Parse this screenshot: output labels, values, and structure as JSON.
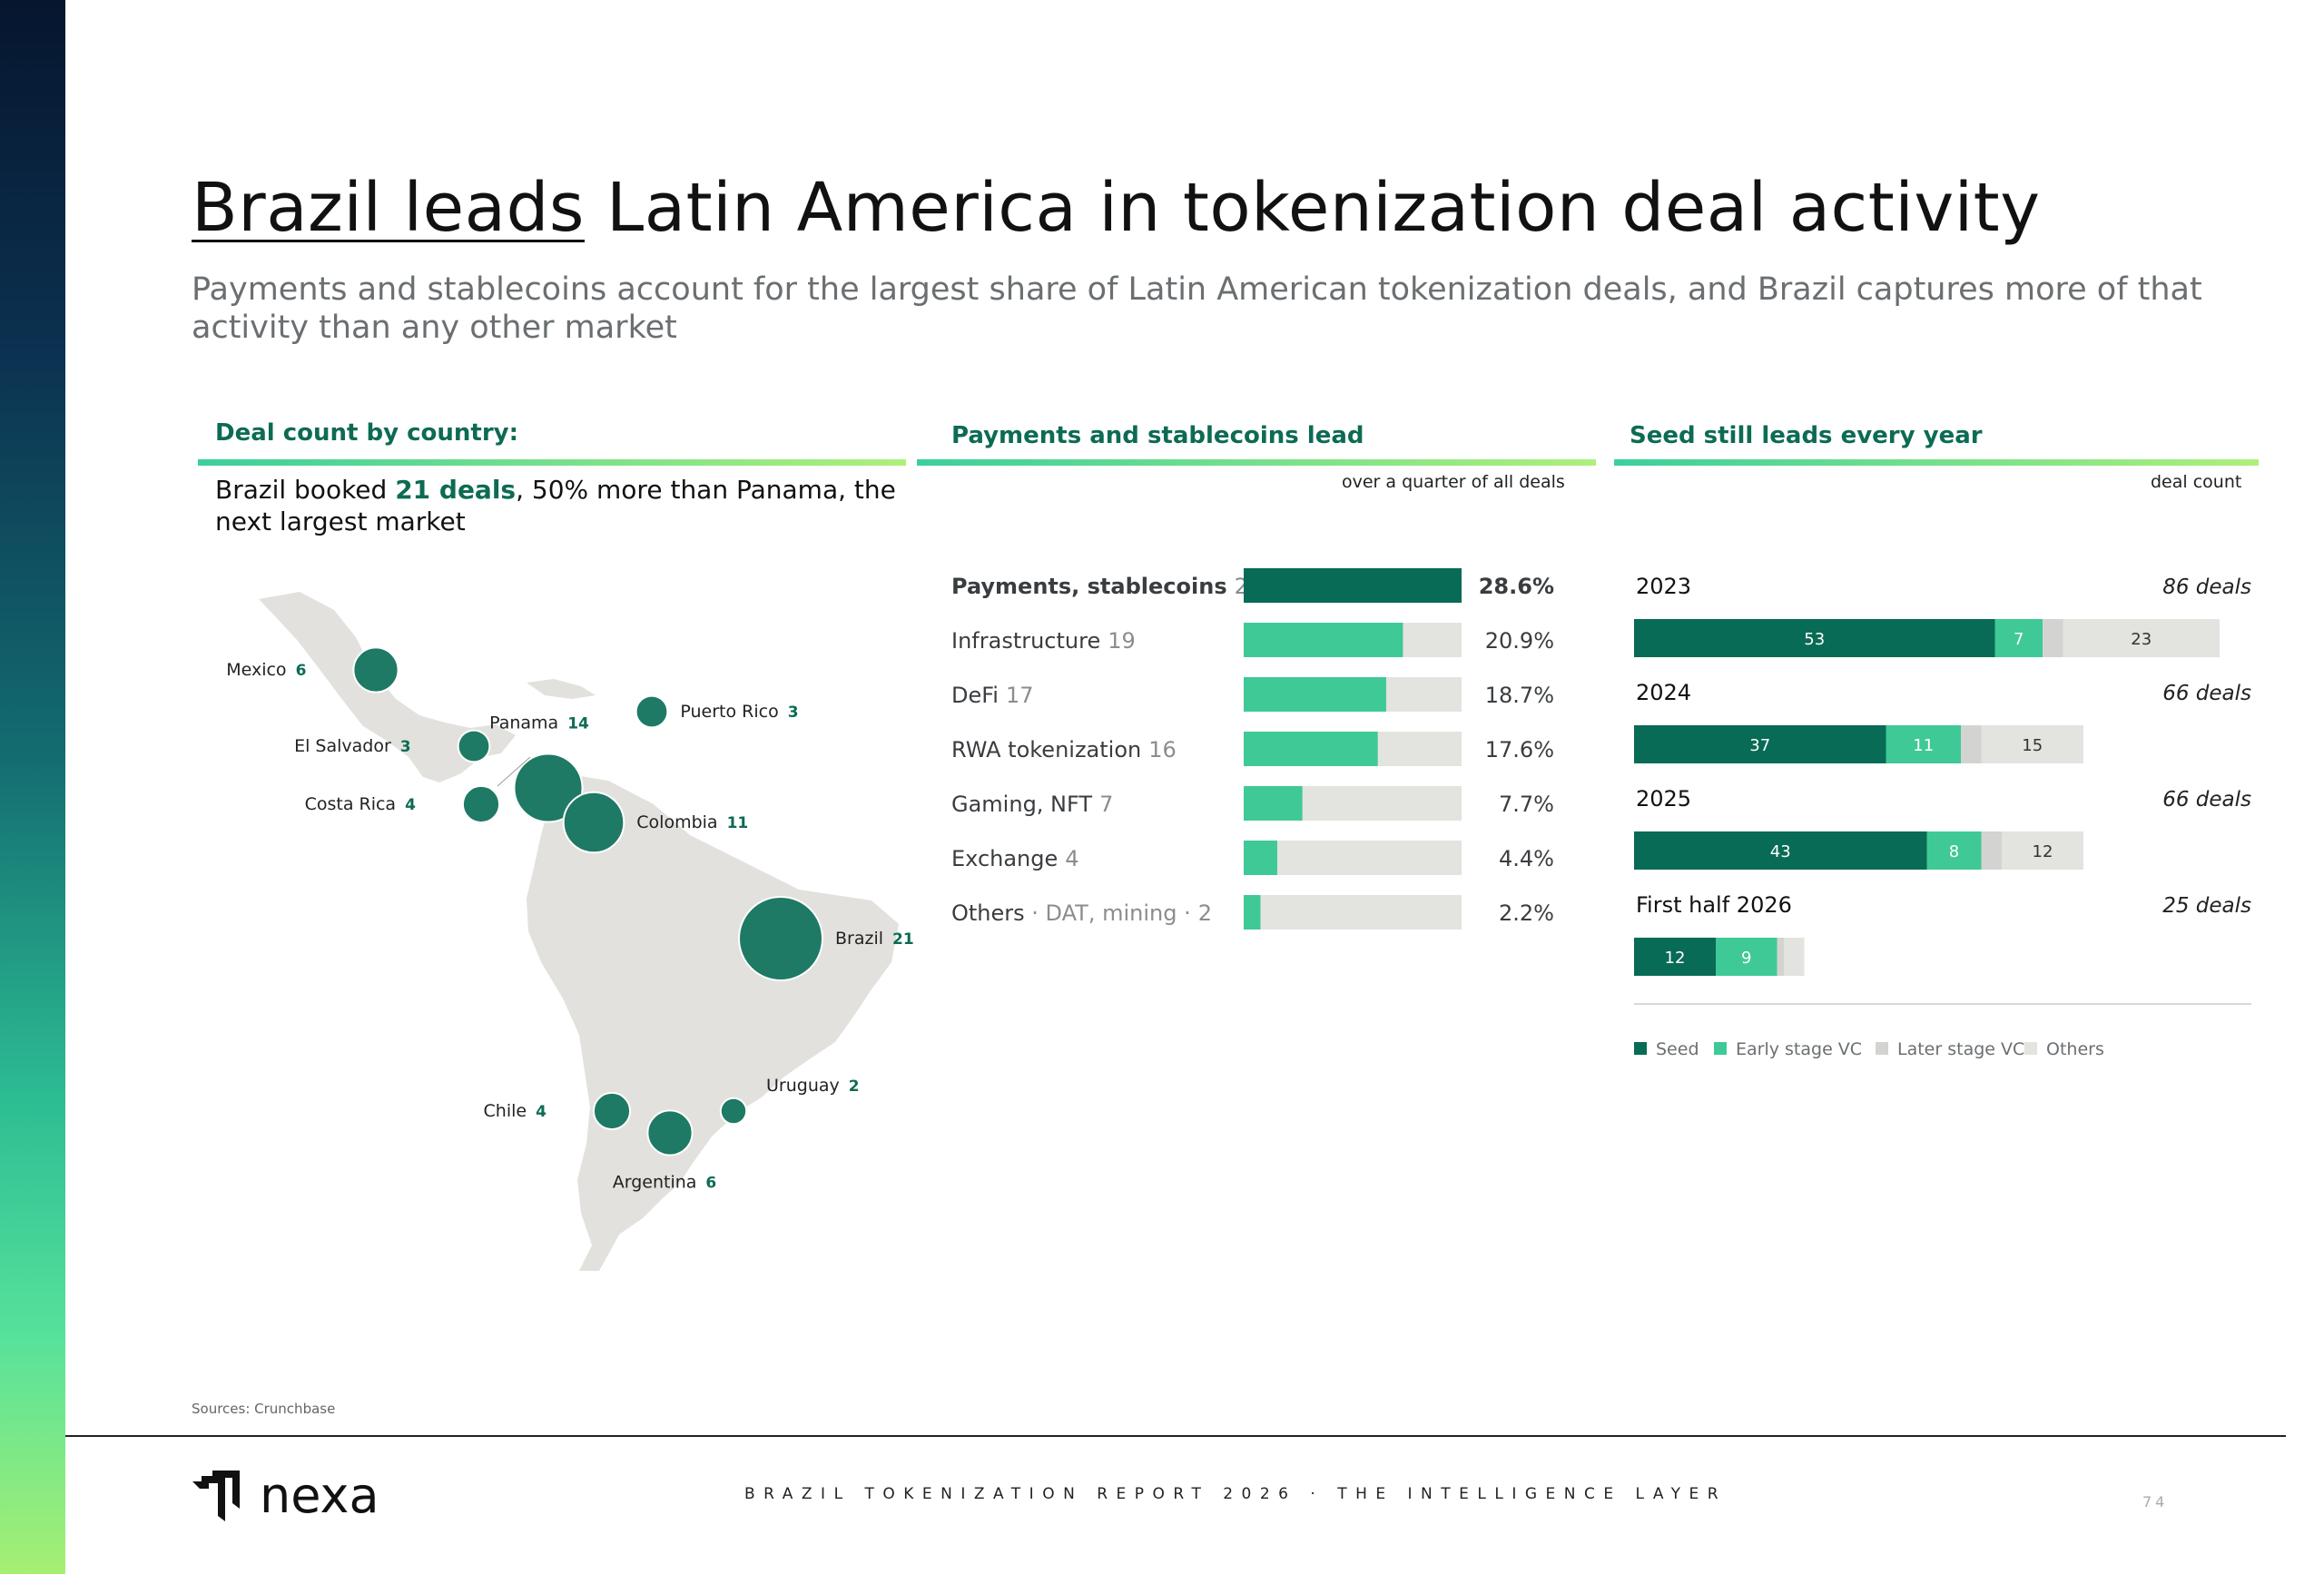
{
  "header": {
    "title_lead": "Brazil leads",
    "title_rest": " Latin America in tokenization deal activity",
    "subtitle": "Payments and stablecoins account for the largest share of Latin American tokenization deals, and Brazil captures more of that activity than any other market"
  },
  "panel_country": {
    "heading": "Deal count by country:",
    "text_pre": "Brazil booked ",
    "text_highlight": "21 deals",
    "text_post": ", 50% more than Panama, the next largest market"
  },
  "panel_sector": {
    "heading": "Payments and stablecoins lead",
    "note": "over a quarter of all deals"
  },
  "panel_stage": {
    "heading": "Seed still leads every year",
    "note": "deal count"
  },
  "colors": {
    "dark_green": "#086b55",
    "mint": "#3fc996",
    "light_gray": "#d3d4d2",
    "pale_gray": "#e3e3df",
    "land": "#e2e1dd"
  },
  "chart_data": [
    {
      "type": "scatter",
      "name": "Deal count by country",
      "points": [
        {
          "country": "Mexico",
          "value": 6
        },
        {
          "country": "El Salvador",
          "value": 3
        },
        {
          "country": "Costa Rica",
          "value": 4
        },
        {
          "country": "Panama",
          "value": 14
        },
        {
          "country": "Puerto Rico",
          "value": 3
        },
        {
          "country": "Colombia",
          "value": 11
        },
        {
          "country": "Brazil",
          "value": 21
        },
        {
          "country": "Uruguay",
          "value": 2
        },
        {
          "country": "Chile",
          "value": 4
        },
        {
          "country": "Argentina",
          "value": 6
        }
      ]
    },
    {
      "type": "bar",
      "name": "Payments and stablecoins lead",
      "categories": [
        "Payments, stablecoins",
        "Infrastructure",
        "DeFi",
        "RWA tokenization",
        "Gaming, NFT",
        "Exchange",
        "Others"
      ],
      "category_suffix": [
        "",
        "",
        "",
        "",
        "",
        "",
        " · DAT, mining ·"
      ],
      "counts": [
        26,
        19,
        17,
        16,
        7,
        4,
        2
      ],
      "values": [
        28.6,
        20.9,
        18.7,
        17.6,
        7.7,
        4.4,
        2.2
      ],
      "value_labels": [
        "28.6%",
        "20.9%",
        "18.7%",
        "17.6%",
        "7.7%",
        "4.4%",
        "2.2%"
      ]
    },
    {
      "type": "bar",
      "name": "Seed still leads every year",
      "stacked": true,
      "categories": [
        "2023",
        "2024",
        "2025",
        "First half 2026"
      ],
      "totals": [
        "86 deals",
        "66 deals",
        "66 deals",
        "25 deals"
      ],
      "series": [
        {
          "name": "Seed",
          "values": [
            53,
            37,
            43,
            12
          ]
        },
        {
          "name": "Early stage VC",
          "values": [
            7,
            11,
            8,
            9
          ]
        },
        {
          "name": "Later stage VC",
          "values": [
            3,
            3,
            3,
            1
          ]
        },
        {
          "name": "Others",
          "values": [
            23,
            15,
            12,
            3
          ]
        }
      ],
      "shown_segment_labels": [
        [
          53,
          7,
          null,
          23
        ],
        [
          37,
          11,
          null,
          15
        ],
        [
          43,
          8,
          null,
          12
        ],
        [
          12,
          9,
          null,
          null
        ]
      ]
    }
  ],
  "footer": {
    "sources": "Sources: Crunchbase",
    "logo_text": "nexa",
    "report_line": "BRAZIL TOKENIZATION REPORT 2026 · THE INTELLIGENCE LAYER",
    "page_number": "74"
  }
}
